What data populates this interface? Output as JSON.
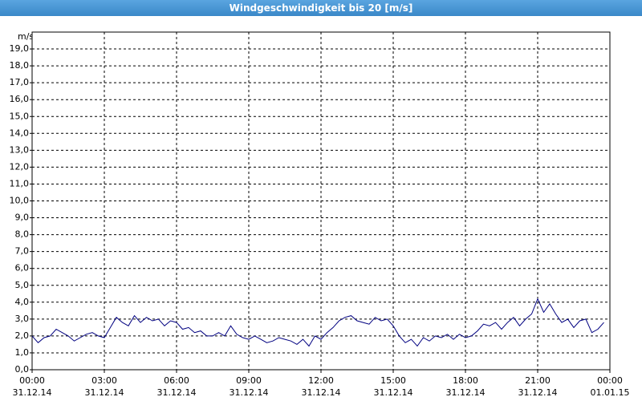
{
  "chart_data": {
    "type": "line",
    "title": "Windgeschwindigkeit bis 20 [m/s]",
    "y_label": "m/s",
    "xlim": [
      0,
      24
    ],
    "xticks": [
      {
        "value": 0,
        "label": [
          "00:00",
          "31.12.14"
        ]
      },
      {
        "value": 3,
        "label": [
          "03:00",
          "31.12.14"
        ]
      },
      {
        "value": 6,
        "label": [
          "06:00",
          "31.12.14"
        ]
      },
      {
        "value": 9,
        "label": [
          "09:00",
          "31.12.14"
        ]
      },
      {
        "value": 12,
        "label": [
          "12:00",
          "31.12.14"
        ]
      },
      {
        "value": 15,
        "label": [
          "15:00",
          "31.12.14"
        ]
      },
      {
        "value": 18,
        "label": [
          "18:00",
          "31.12.14"
        ]
      },
      {
        "value": 21,
        "label": [
          "21:00",
          "31.12.14"
        ]
      },
      {
        "value": 24,
        "label": [
          "00:00",
          "01.01.15"
        ]
      }
    ],
    "ylim": [
      0,
      20
    ],
    "yticks": [
      {
        "value": 0,
        "label": "0,0"
      },
      {
        "value": 1,
        "label": "1,0"
      },
      {
        "value": 2,
        "label": "2,0"
      },
      {
        "value": 3,
        "label": "3,0"
      },
      {
        "value": 4,
        "label": "4,0"
      },
      {
        "value": 5,
        "label": "5,0"
      },
      {
        "value": 6,
        "label": "6,0"
      },
      {
        "value": 7,
        "label": "7,0"
      },
      {
        "value": 8,
        "label": "8,0"
      },
      {
        "value": 9,
        "label": "9,0"
      },
      {
        "value": 10,
        "label": "10,0"
      },
      {
        "value": 11,
        "label": "11,0"
      },
      {
        "value": 12,
        "label": "12,0"
      },
      {
        "value": 13,
        "label": "13,0"
      },
      {
        "value": 14,
        "label": "14,0"
      },
      {
        "value": 15,
        "label": "15,0"
      },
      {
        "value": 16,
        "label": "16,0"
      },
      {
        "value": 17,
        "label": "17,0"
      },
      {
        "value": 18,
        "label": "18,0"
      },
      {
        "value": 19,
        "label": "19,0"
      }
    ],
    "grid": true,
    "x": [
      0,
      0.25,
      0.5,
      0.75,
      1,
      1.25,
      1.5,
      1.75,
      2,
      2.25,
      2.5,
      2.75,
      3,
      3.25,
      3.5,
      3.75,
      4,
      4.25,
      4.5,
      4.75,
      5,
      5.25,
      5.5,
      5.75,
      6,
      6.25,
      6.5,
      6.75,
      7,
      7.25,
      7.5,
      7.75,
      8,
      8.25,
      8.5,
      8.75,
      9,
      9.25,
      9.5,
      9.75,
      10,
      10.25,
      10.5,
      10.75,
      11,
      11.25,
      11.5,
      11.75,
      12,
      12.25,
      12.5,
      12.75,
      13,
      13.25,
      13.5,
      13.75,
      14,
      14.25,
      14.5,
      14.75,
      15,
      15.25,
      15.5,
      15.75,
      16,
      16.25,
      16.5,
      16.75,
      17,
      17.25,
      17.5,
      17.75,
      18,
      18.25,
      18.5,
      18.75,
      19,
      19.25,
      19.5,
      19.75,
      20,
      20.25,
      20.5,
      20.75,
      21,
      21.25,
      21.5,
      21.75,
      22,
      22.25,
      22.5,
      22.75,
      23,
      23.25,
      23.5,
      23.75
    ],
    "series": [
      {
        "color": "#000080",
        "values": [
          2.0,
          1.6,
          1.9,
          2.0,
          2.4,
          2.2,
          2.0,
          1.7,
          1.9,
          2.1,
          2.2,
          2.0,
          1.9,
          2.5,
          3.1,
          2.8,
          2.6,
          3.2,
          2.8,
          3.1,
          2.9,
          3.0,
          2.6,
          2.9,
          2.8,
          2.4,
          2.5,
          2.2,
          2.3,
          2.0,
          2.0,
          2.2,
          2.0,
          2.6,
          2.1,
          1.9,
          1.8,
          2.0,
          1.8,
          1.6,
          1.7,
          1.9,
          1.8,
          1.7,
          1.5,
          1.8,
          1.4,
          2.0,
          1.8,
          2.2,
          2.5,
          2.9,
          3.1,
          3.2,
          2.9,
          2.8,
          2.7,
          3.1,
          2.9,
          3.0,
          2.6,
          2.0,
          1.6,
          1.8,
          1.4,
          1.9,
          1.7,
          2.0,
          1.9,
          2.1,
          1.8,
          2.1,
          1.9,
          2.0,
          2.3,
          2.7,
          2.6,
          2.8,
          2.4,
          2.8,
          3.1,
          2.6,
          3.0,
          3.3,
          4.2,
          3.4,
          3.9,
          3.3,
          2.8,
          3.0,
          2.5,
          2.9,
          3.0,
          2.2,
          2.4,
          2.8
        ]
      }
    ]
  }
}
